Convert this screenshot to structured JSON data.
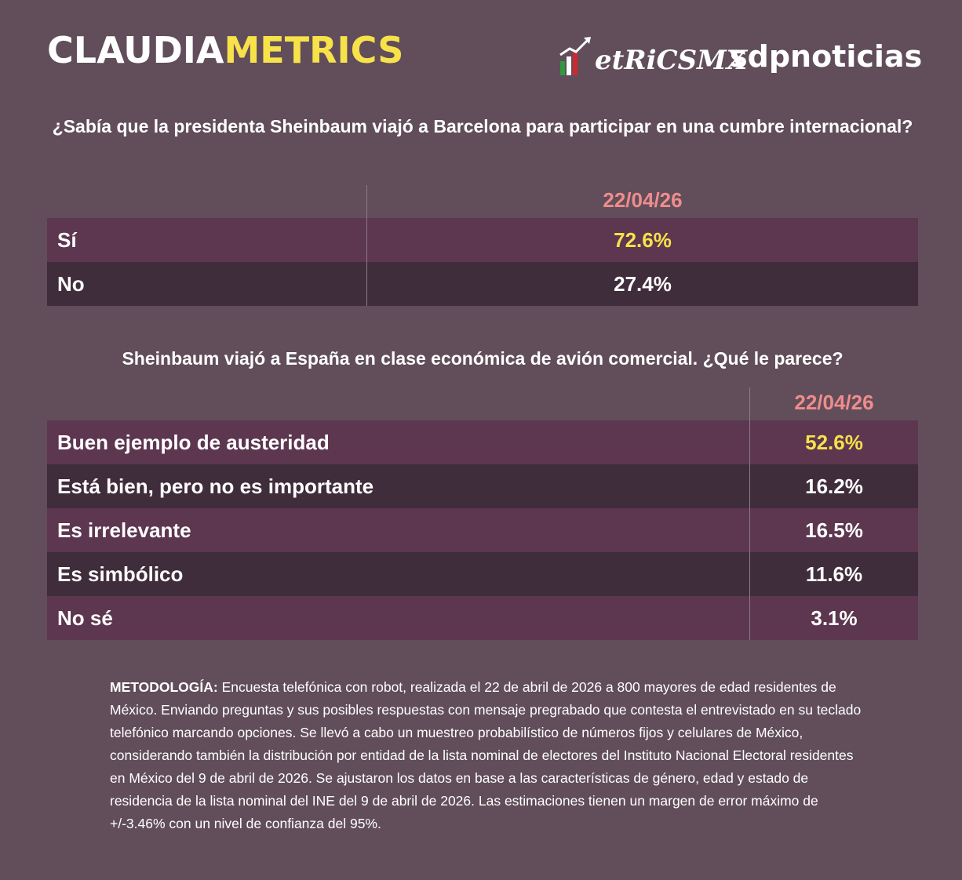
{
  "header": {
    "brand_part1": "CLAUDIA",
    "brand_part2": "METRICS",
    "partner1": "etRiCSMX",
    "partner2": "sdpnoticias"
  },
  "colors": {
    "background": "#614e5a",
    "row_odd": "#5d364f",
    "row_even": "#402d3b",
    "date": "#f08c8c",
    "highlight": "#f7e24a"
  },
  "chart_data": [
    {
      "type": "table",
      "title": "¿Sabía que la presidenta Sheinbaum viajó a Barcelona para participar en una cumbre internacional?",
      "column_header": "22/04/26",
      "rows": [
        {
          "label": "Sí",
          "value": "72.6%",
          "highlight": true
        },
        {
          "label": "No",
          "value": "27.4%",
          "highlight": false
        }
      ]
    },
    {
      "type": "table",
      "title": "Sheinbaum viajó a España en clase económica de avión comercial. ¿Qué le parece?",
      "column_header": "22/04/26",
      "rows": [
        {
          "label": "Buen ejemplo de austeridad",
          "value": "52.6%",
          "highlight": true
        },
        {
          "label": "Está bien, pero no es importante",
          "value": "16.2%",
          "highlight": false
        },
        {
          "label": "Es irrelevante",
          "value": "16.5%",
          "highlight": false
        },
        {
          "label": "Es simbólico",
          "value": "11.6%",
          "highlight": false
        },
        {
          "label": "No sé",
          "value": "3.1%",
          "highlight": false
        }
      ]
    }
  ],
  "methodology": {
    "label": "METODOLOGÍA:",
    "text": " Encuesta telefónica con robot, realizada el 22 de abril de 2026 a 800 mayores de edad residentes de México. Enviando preguntas y sus posibles respuestas con mensaje pregrabado que contesta el entrevistado en su teclado telefónico marcando opciones. Se llevó a cabo un muestreo probabilístico de números fijos y celulares de México, considerando también la distribución por entidad de la lista nominal de electores del Instituto Nacional Electoral residentes en México del 9 de abril de 2026. Se ajustaron los datos en base a las características de género, edad y estado de residencia de la lista nominal del INE del 9 de abril de 2026. Las estimaciones tienen un margen de error máximo de +/-3.46% con un nivel de confianza del 95%."
  }
}
